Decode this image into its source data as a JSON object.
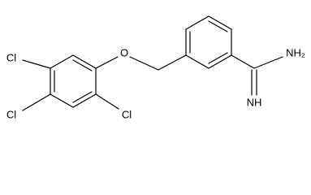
{
  "atoms": [
    "Cl",
    "Cl",
    "Cl",
    "O",
    "NH₂",
    "NH"
  ]
}
